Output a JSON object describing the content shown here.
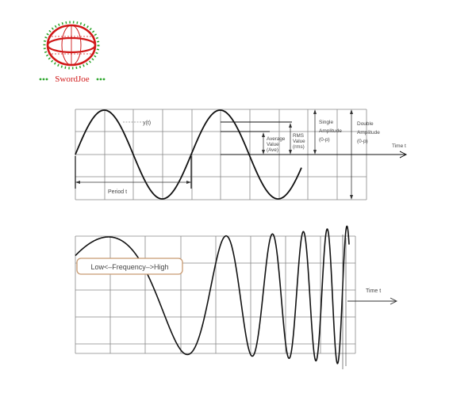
{
  "logo": {
    "brand": "SwordJoe",
    "ring_color": "#d01818",
    "dot_color": "#2aa52a"
  },
  "diagram_top": {
    "y_label": "y(t)",
    "period_label": "Period t",
    "average_label": [
      "Average",
      "Value",
      "(Ave)"
    ],
    "rms_label": [
      "RMS",
      "Value",
      "(rms)"
    ],
    "single_amp_label": [
      "Single",
      "Amplitude",
      "(0-p)"
    ],
    "double_amp_label": [
      "Double",
      "Amplitude",
      "(0-p)"
    ],
    "time_label": "Time t"
  },
  "diagram_bottom": {
    "frequency_box": "Low<–Frequency–>High",
    "time_label": "Time t",
    "box_border_color": "#c89a70"
  }
}
